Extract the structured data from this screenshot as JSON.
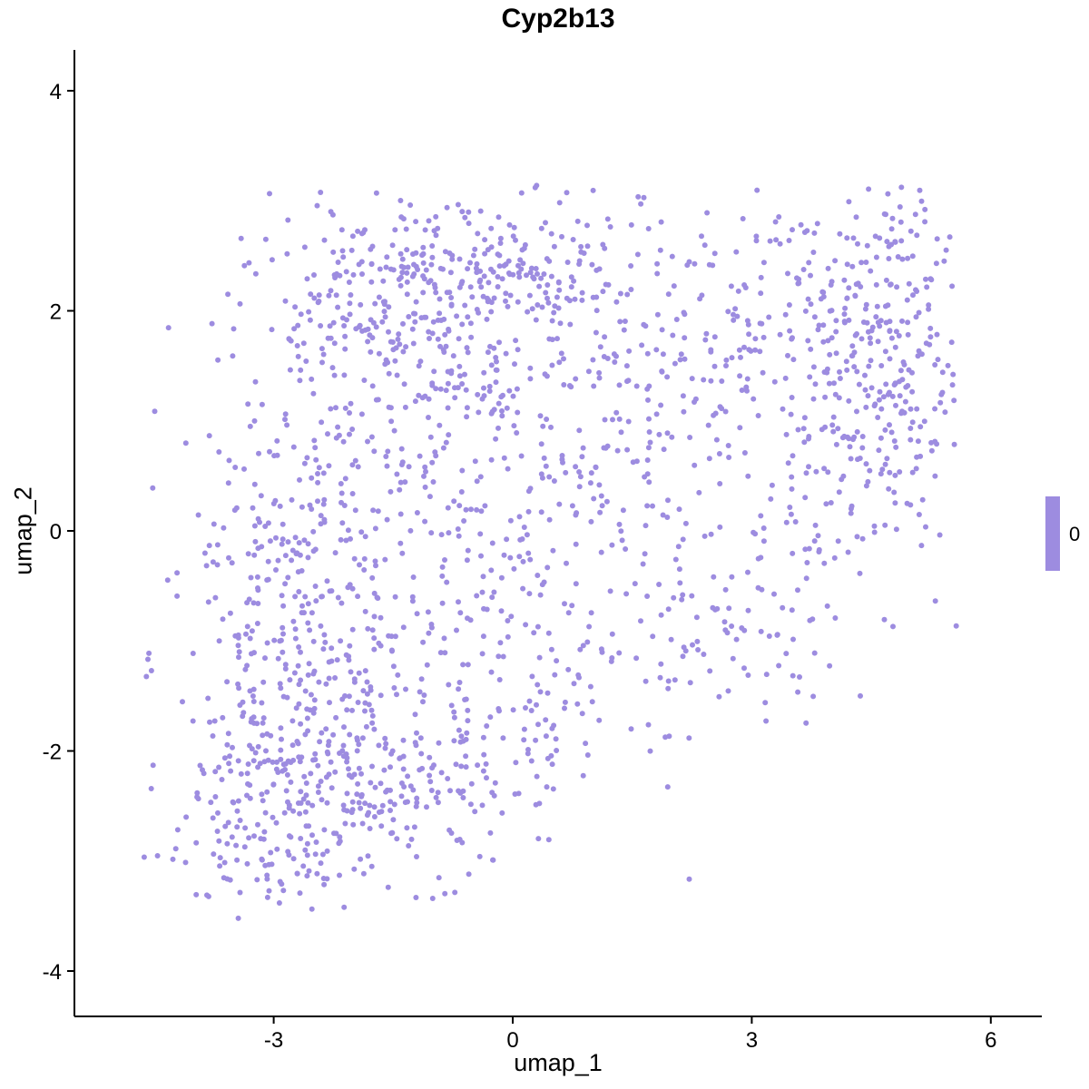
{
  "chart": {
    "title": "Cyp2b13",
    "xlabel": "umap_1",
    "ylabel": "umap_2"
  },
  "chart_data": {
    "type": "scatter",
    "title": "Cyp2b13",
    "xlabel": "umap_1",
    "ylabel": "umap_2",
    "xlim": [
      -5.5,
      6.6
    ],
    "ylim": [
      -4.4,
      4.4
    ],
    "xticks": [
      -3,
      0,
      3,
      6
    ],
    "xtick_labels": [
      "-3",
      "0",
      "3",
      "6"
    ],
    "yticks": [
      -4,
      -2,
      0,
      2,
      4
    ],
    "ytick_labels": [
      "-4",
      "-2",
      "0",
      "2",
      "4"
    ],
    "grid": false,
    "legend_position": "right",
    "legend": {
      "label": "0",
      "color": "#9D8CE0"
    },
    "point_color": "#9D8CE0",
    "point_radius_px": 3.0,
    "axis_color": "#000000",
    "seed": 42,
    "approx_point_count": 2150,
    "bounds": {
      "xmin": -4.9,
      "xmax": 5.6,
      "ymin": -3.55,
      "ymax": 3.15
    },
    "clusters": [
      {
        "cx": -2.7,
        "cy": -2.3,
        "sx": 0.85,
        "sy": 0.6,
        "n": 330
      },
      {
        "cx": -1.2,
        "cy": -2.1,
        "sx": 0.9,
        "sy": 0.55,
        "n": 150
      },
      {
        "cx": -3.0,
        "cy": -0.6,
        "sx": 0.6,
        "sy": 0.85,
        "n": 150
      },
      {
        "cx": -1.6,
        "cy": 0.2,
        "sx": 1.1,
        "sy": 0.9,
        "n": 220
      },
      {
        "cx": -1.5,
        "cy": 2.0,
        "sx": 0.95,
        "sy": 0.55,
        "n": 260
      },
      {
        "cx": 0.0,
        "cy": 2.35,
        "sx": 0.8,
        "sy": 0.45,
        "n": 170
      },
      {
        "cx": 0.3,
        "cy": 0.8,
        "sx": 0.9,
        "sy": 0.8,
        "n": 140
      },
      {
        "cx": 0.5,
        "cy": -1.2,
        "sx": 0.8,
        "sy": 0.7,
        "n": 110
      },
      {
        "cx": 1.8,
        "cy": 1.5,
        "sx": 0.7,
        "sy": 0.7,
        "n": 80
      },
      {
        "cx": 3.1,
        "cy": 2.0,
        "sx": 0.8,
        "sy": 0.5,
        "n": 100
      },
      {
        "cx": 4.7,
        "cy": 1.9,
        "sx": 0.55,
        "sy": 0.65,
        "n": 200
      },
      {
        "cx": 3.6,
        "cy": 0.3,
        "sx": 0.8,
        "sy": 0.9,
        "n": 110
      },
      {
        "cx": 2.6,
        "cy": -0.8,
        "sx": 0.6,
        "sy": 0.55,
        "n": 60
      },
      {
        "cx": 4.6,
        "cy": 0.7,
        "sx": 0.5,
        "sy": 0.6,
        "n": 70
      },
      {
        "cx": -4.65,
        "cy": -1.25,
        "sx": 0.07,
        "sy": 0.13,
        "n": 4
      }
    ]
  }
}
